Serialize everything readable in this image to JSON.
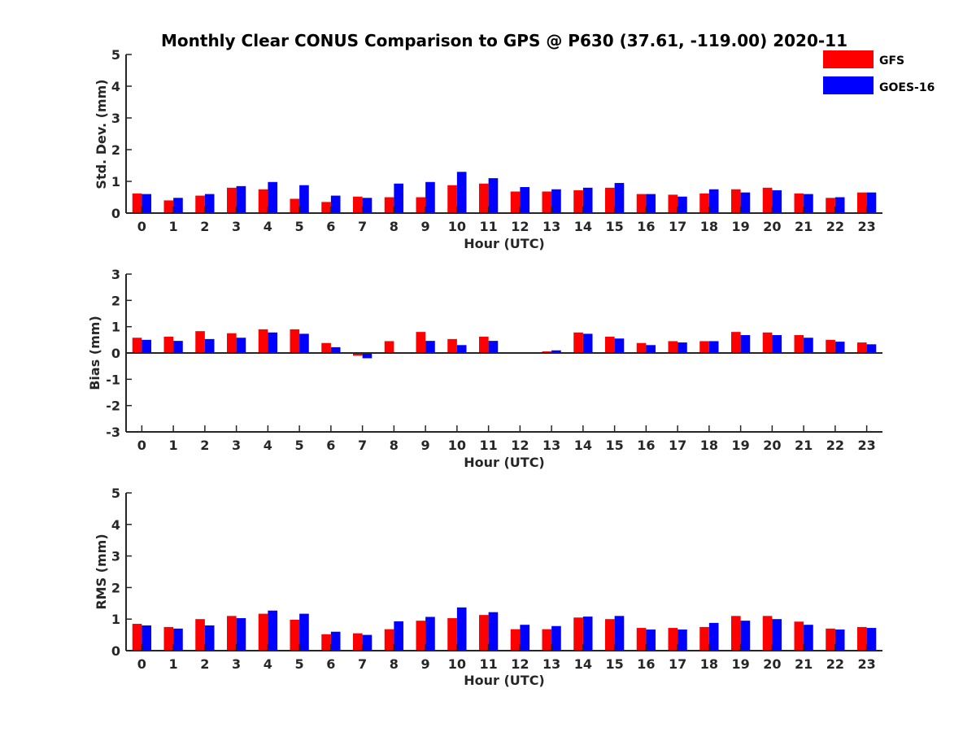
{
  "chart_data": {
    "title": "Monthly Clear CONUS Comparison to GPS @ P630 (37.61, -119.00) 2020-11",
    "type": "bar",
    "colors": {
      "GFS": "#ff0000",
      "GOES-16": "#0000ff"
    },
    "legend": {
      "position": "top-right",
      "entries": [
        "GFS",
        "GOES-16"
      ]
    },
    "panels": [
      {
        "id": "std",
        "ylabel": "Std. Dev. (mm)",
        "xlabel": "Hour (UTC)",
        "ylim": [
          0,
          5
        ],
        "yticks": [
          "0",
          "1",
          "2",
          "3",
          "4",
          "5"
        ],
        "categories": [
          "0",
          "1",
          "2",
          "3",
          "4",
          "5",
          "6",
          "7",
          "8",
          "9",
          "10",
          "11",
          "12",
          "13",
          "14",
          "15",
          "16",
          "17",
          "18",
          "19",
          "20",
          "21",
          "22",
          "23"
        ],
        "series": [
          {
            "name": "GFS",
            "values": [
              0.62,
              0.4,
              0.55,
              0.8,
              0.75,
              0.45,
              0.35,
              0.52,
              0.5,
              0.5,
              0.88,
              0.93,
              0.68,
              0.68,
              0.72,
              0.8,
              0.6,
              0.58,
              0.62,
              0.75,
              0.8,
              0.62,
              0.48,
              0.65
            ]
          },
          {
            "name": "GOES-16",
            "values": [
              0.6,
              0.48,
              0.6,
              0.85,
              0.98,
              0.88,
              0.55,
              0.48,
              0.93,
              0.98,
              1.3,
              1.1,
              0.82,
              0.75,
              0.8,
              0.95,
              0.6,
              0.52,
              0.75,
              0.65,
              0.72,
              0.6,
              0.5,
              0.65
            ]
          }
        ]
      },
      {
        "id": "bias",
        "ylabel": "Bias (mm)",
        "xlabel": "Hour (UTC)",
        "ylim": [
          -3,
          3
        ],
        "yticks": [
          "-3",
          "-2",
          "-1",
          "0",
          "1",
          "2",
          "3"
        ],
        "categories": [
          "0",
          "1",
          "2",
          "3",
          "4",
          "5",
          "6",
          "7",
          "8",
          "9",
          "10",
          "11",
          "12",
          "13",
          "14",
          "15",
          "16",
          "17",
          "18",
          "19",
          "20",
          "21",
          "22",
          "23"
        ],
        "series": [
          {
            "name": "GFS",
            "values": [
              0.58,
              0.62,
              0.83,
              0.75,
              0.9,
              0.9,
              0.38,
              -0.1,
              0.45,
              0.8,
              0.53,
              0.62,
              0,
              0.06,
              0.78,
              0.62,
              0.38,
              0.45,
              0.45,
              0.8,
              0.78,
              0.68,
              0.5,
              0.4
            ]
          },
          {
            "name": "GOES-16",
            "values": [
              0.5,
              0.46,
              0.53,
              0.58,
              0.78,
              0.73,
              0.22,
              -0.2,
              0,
              0.46,
              0.3,
              0.46,
              0,
              0.1,
              0.73,
              0.55,
              0.3,
              0.4,
              0.45,
              0.68,
              0.68,
              0.58,
              0.43,
              0.33
            ]
          }
        ]
      },
      {
        "id": "rms",
        "ylabel": "RMS (mm)",
        "xlabel": "Hour (UTC)",
        "ylim": [
          0,
          5
        ],
        "yticks": [
          "0",
          "1",
          "2",
          "3",
          "4",
          "5"
        ],
        "categories": [
          "0",
          "1",
          "2",
          "3",
          "4",
          "5",
          "6",
          "7",
          "8",
          "9",
          "10",
          "11",
          "12",
          "13",
          "14",
          "15",
          "16",
          "17",
          "18",
          "19",
          "20",
          "21",
          "22",
          "23"
        ],
        "series": [
          {
            "name": "GFS",
            "values": [
              0.85,
              0.75,
              1.0,
              1.1,
              1.17,
              0.98,
              0.52,
              0.55,
              0.68,
              0.95,
              1.03,
              1.13,
              0.68,
              0.68,
              1.05,
              1.0,
              0.72,
              0.72,
              0.75,
              1.1,
              1.1,
              0.92,
              0.7,
              0.75
            ]
          },
          {
            "name": "GOES-16",
            "values": [
              0.8,
              0.7,
              0.8,
              1.03,
              1.27,
              1.17,
              0.6,
              0.5,
              0.93,
              1.07,
              1.37,
              1.22,
              0.82,
              0.78,
              1.08,
              1.1,
              0.67,
              0.67,
              0.88,
              0.95,
              1.0,
              0.82,
              0.67,
              0.72
            ]
          }
        ]
      }
    ]
  }
}
